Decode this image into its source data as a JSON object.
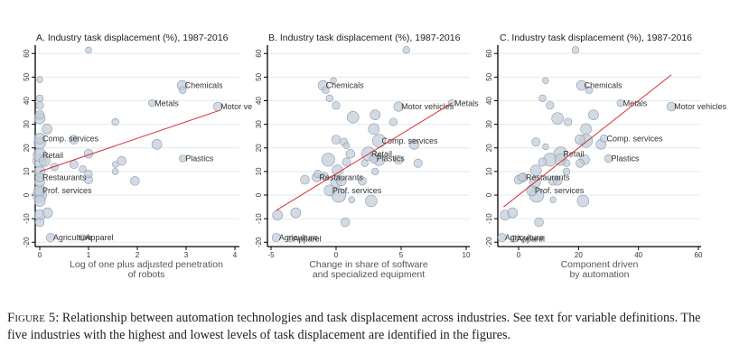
{
  "chart_data": [
    {
      "type": "scatter",
      "title": "A. Industry task displacement (%), 1987-2016",
      "xlabel": [
        "Log of one plus adjusted penetration",
        "of robots"
      ],
      "ylabel": "",
      "xlim": [
        -0.1,
        4.1
      ],
      "ylim": [
        -22,
        64
      ],
      "xticks": [
        0,
        1,
        2,
        3,
        4
      ],
      "yticks": [
        -20,
        -10,
        0,
        10,
        20,
        30,
        40,
        50,
        60
      ],
      "grid": true,
      "fit_line": {
        "x": [
          0,
          3.7
        ],
        "y": [
          10,
          36
        ]
      },
      "points": [
        {
          "x": 0.0,
          "y": 49,
          "s": 1
        },
        {
          "x": 0.0,
          "y": 41,
          "s": 1.5
        },
        {
          "x": 0.0,
          "y": 38,
          "s": 2
        },
        {
          "x": 0.0,
          "y": 34,
          "s": 3
        },
        {
          "x": 0.0,
          "y": 32.5,
          "s": 5
        },
        {
          "x": 0.15,
          "y": 28,
          "s": 4
        },
        {
          "x": 0.0,
          "y": 24,
          "s": 5,
          "label": "Comp. services"
        },
        {
          "x": 0.0,
          "y": 22,
          "s": 6
        },
        {
          "x": 0.0,
          "y": 17,
          "s": 8,
          "label": "Retail"
        },
        {
          "x": 0.0,
          "y": 14.5,
          "s": 9
        },
        {
          "x": 0.1,
          "y": 14.5,
          "s": 5
        },
        {
          "x": 0.0,
          "y": 10,
          "s": 5
        },
        {
          "x": 0.0,
          "y": 7.5,
          "s": 3,
          "label": "Restaurants"
        },
        {
          "x": 0.0,
          "y": 5.5,
          "s": 4
        },
        {
          "x": 0.0,
          "y": 2,
          "s": 6,
          "label": "Prof. services"
        },
        {
          "x": 0.0,
          "y": 0,
          "s": 9
        },
        {
          "x": 0.0,
          "y": -2.5,
          "s": 5
        },
        {
          "x": 0.0,
          "y": -8.5,
          "s": 5
        },
        {
          "x": 0.0,
          "y": -11.5,
          "s": 3
        },
        {
          "x": 0.16,
          "y": -7.5,
          "s": 4
        },
        {
          "x": 0.22,
          "y": -18,
          "s": 2.5,
          "label": "Agriculture"
        },
        {
          "x": 0.88,
          "y": -18,
          "s": 1,
          "label": "Apparel"
        },
        {
          "x": 0.3,
          "y": 12,
          "s": 2
        },
        {
          "x": 0.7,
          "y": 23.5,
          "s": 3
        },
        {
          "x": 0.7,
          "y": 13,
          "s": 2.5
        },
        {
          "x": 0.88,
          "y": 11,
          "s": 1.5
        },
        {
          "x": 1.0,
          "y": 17.5,
          "s": 3
        },
        {
          "x": 1.0,
          "y": 9,
          "s": 2
        },
        {
          "x": 1.0,
          "y": 6.5,
          "s": 2.5
        },
        {
          "x": 1.0,
          "y": 61.5,
          "s": 1
        },
        {
          "x": 1.55,
          "y": 31,
          "s": 1.5
        },
        {
          "x": 1.55,
          "y": 13,
          "s": 1
        },
        {
          "x": 1.55,
          "y": 10,
          "s": 1
        },
        {
          "x": 1.68,
          "y": 14.5,
          "s": 3
        },
        {
          "x": 1.95,
          "y": 6,
          "s": 3
        },
        {
          "x": 2.4,
          "y": 21.5,
          "s": 4
        },
        {
          "x": 2.3,
          "y": 39,
          "s": 1.5,
          "label": "Metals"
        },
        {
          "x": 2.92,
          "y": 46.5,
          "s": 4,
          "label": "Chemicals"
        },
        {
          "x": 2.93,
          "y": 44.5,
          "s": 1.5
        },
        {
          "x": 2.93,
          "y": 15.5,
          "s": 1.5,
          "label": "Plastics"
        },
        {
          "x": 3.65,
          "y": 37.5,
          "s": 3,
          "label": "Motor ve"
        }
      ]
    },
    {
      "type": "scatter",
      "title": "B. Industry task displacement (%), 1987-2016",
      "xlabel": [
        "Change in share of software",
        "and specialized equipment"
      ],
      "ylabel": "",
      "xlim": [
        -5.3,
        10.3
      ],
      "ylim": [
        -22,
        64
      ],
      "xticks": [
        -5,
        0,
        5,
        10
      ],
      "yticks": [
        -20,
        -10,
        0,
        10,
        20,
        30,
        40,
        50,
        60
      ],
      "grid": true,
      "fit_line": {
        "x": [
          -4.6,
          8.9
        ],
        "y": [
          -6.5,
          39
        ]
      },
      "points": [
        {
          "x": -4.6,
          "y": -18,
          "s": 2.5,
          "label": "Agriculture"
        },
        {
          "x": -3.5,
          "y": -18.5,
          "s": 1,
          "label": "Apparel"
        },
        {
          "x": -4.5,
          "y": -8.5,
          "s": 4
        },
        {
          "x": -3.1,
          "y": -7.5,
          "s": 4
        },
        {
          "x": -2.4,
          "y": 6.5,
          "s": 3
        },
        {
          "x": -1.5,
          "y": 7.5,
          "s": 3,
          "label": "Restaurants"
        },
        {
          "x": -1.4,
          "y": 9,
          "s": 2
        },
        {
          "x": -0.9,
          "y": 8,
          "s": 2
        },
        {
          "x": -0.6,
          "y": 15,
          "s": 8
        },
        {
          "x": -0.5,
          "y": 2,
          "s": 5,
          "label": "Prof. services"
        },
        {
          "x": 0.2,
          "y": 0,
          "s": 10
        },
        {
          "x": 0.0,
          "y": 5.5,
          "s": 5
        },
        {
          "x": 0.4,
          "y": 6,
          "s": 4
        },
        {
          "x": 0.1,
          "y": 10.5,
          "s": 5
        },
        {
          "x": 0.7,
          "y": -11.5,
          "s": 3
        },
        {
          "x": 0.0,
          "y": 23.5,
          "s": 3
        },
        {
          "x": 0.6,
          "y": 22.5,
          "s": 2
        },
        {
          "x": 0.8,
          "y": 14,
          "s": 2.5
        },
        {
          "x": 0.8,
          "y": 21,
          "s": 1
        },
        {
          "x": 1.1,
          "y": 17.5,
          "s": 3
        },
        {
          "x": 1.2,
          "y": -2,
          "s": 1
        },
        {
          "x": 1.3,
          "y": 33,
          "s": 6
        },
        {
          "x": 2.0,
          "y": 6,
          "s": 2.5
        },
        {
          "x": 2.2,
          "y": 13.5,
          "s": 1.5
        },
        {
          "x": 2.5,
          "y": 17.5,
          "s": 9,
          "label": "Retail"
        },
        {
          "x": 2.7,
          "y": -2.5,
          "s": 6
        },
        {
          "x": 2.9,
          "y": 15.5,
          "s": 3,
          "label": "Plastics"
        },
        {
          "x": 3.0,
          "y": 10,
          "s": 1.5
        },
        {
          "x": 3.0,
          "y": 34,
          "s": 4
        },
        {
          "x": 2.9,
          "y": 28,
          "s": 5
        },
        {
          "x": 3.3,
          "y": 23,
          "s": 8,
          "label": "Comp. services"
        },
        {
          "x": 3.3,
          "y": 15,
          "s": 6
        },
        {
          "x": 4.4,
          "y": 31,
          "s": 2
        },
        {
          "x": 4.8,
          "y": 15,
          "s": 3
        },
        {
          "x": 4.8,
          "y": 37.5,
          "s": 3.5,
          "label": "Motor vehicles"
        },
        {
          "x": 5.4,
          "y": 61.5,
          "s": 1.5
        },
        {
          "x": 6.0,
          "y": 21.5,
          "s": 4
        },
        {
          "x": 6.3,
          "y": 13.5,
          "s": 2.5
        },
        {
          "x": -0.2,
          "y": 48.5,
          "s": 1
        },
        {
          "x": -0.5,
          "y": 41,
          "s": 1.5
        },
        {
          "x": 0.0,
          "y": 38,
          "s": 2
        },
        {
          "x": -1.0,
          "y": 46.5,
          "s": 4,
          "label": "Chemicals"
        },
        {
          "x": -0.8,
          "y": 44.5,
          "s": 1.5
        },
        {
          "x": 8.9,
          "y": 39,
          "s": 1.5,
          "label": "Metals"
        }
      ]
    },
    {
      "type": "scatter",
      "title": "C. Industry task displacement (%), 1987-2016",
      "xlabel": [
        "Component driven",
        "by automation"
      ],
      "ylabel": "",
      "xlim": [
        -7,
        61
      ],
      "ylim": [
        -22,
        64
      ],
      "xticks": [
        0,
        20,
        40,
        60
      ],
      "yticks": [
        -20,
        -10,
        0,
        10,
        20,
        30,
        40,
        50,
        60
      ],
      "grid": true,
      "fit_line": {
        "x": [
          -5,
          51
        ],
        "y": [
          -5,
          51
        ]
      },
      "points": [
        {
          "x": -5.5,
          "y": -18,
          "s": 2.5,
          "label": "Agriculture"
        },
        {
          "x": -1.5,
          "y": -18.5,
          "s": 1.5,
          "label": "Apparel"
        },
        {
          "x": -4.5,
          "y": -8.5,
          "s": 4
        },
        {
          "x": -2,
          "y": -7.5,
          "s": 4
        },
        {
          "x": 0,
          "y": 6.5,
          "s": 3
        },
        {
          "x": 1.5,
          "y": 7.5,
          "s": 3,
          "label": "Restaurants"
        },
        {
          "x": 1,
          "y": 7.5,
          "s": 2
        },
        {
          "x": 4.5,
          "y": 2,
          "s": 5,
          "label": "Prof. services"
        },
        {
          "x": 6,
          "y": 0,
          "s": 10
        },
        {
          "x": 5.5,
          "y": 5.5,
          "s": 5
        },
        {
          "x": 5.8,
          "y": 10.5,
          "s": 5
        },
        {
          "x": 6.8,
          "y": -11.5,
          "s": 3
        },
        {
          "x": 5.8,
          "y": 22.5,
          "s": 2.5
        },
        {
          "x": 8,
          "y": 14,
          "s": 2.5
        },
        {
          "x": 9,
          "y": 20.5,
          "s": 1
        },
        {
          "x": 10.5,
          "y": 15,
          "s": 8
        },
        {
          "x": 11.5,
          "y": -2,
          "s": 1
        },
        {
          "x": 11.5,
          "y": 6,
          "s": 3
        },
        {
          "x": 13,
          "y": 6,
          "s": 3
        },
        {
          "x": 13,
          "y": 32.5,
          "s": 6
        },
        {
          "x": 14,
          "y": 17.5,
          "s": 9,
          "label": "Retail"
        },
        {
          "x": 14,
          "y": 15,
          "s": 6
        },
        {
          "x": 16,
          "y": 13.5,
          "s": 1.5
        },
        {
          "x": 16,
          "y": 10,
          "s": 1.5
        },
        {
          "x": 16.5,
          "y": 31,
          "s": 2
        },
        {
          "x": 20.5,
          "y": 13.5,
          "s": 2.5
        },
        {
          "x": 20.5,
          "y": 23.5,
          "s": 4
        },
        {
          "x": 21.5,
          "y": -2.5,
          "s": 6
        },
        {
          "x": 22,
          "y": 15,
          "s": 4
        },
        {
          "x": 22.5,
          "y": 28,
          "s": 5
        },
        {
          "x": 22.5,
          "y": 23,
          "s": 8
        },
        {
          "x": 25,
          "y": 34,
          "s": 4
        },
        {
          "x": 27.5,
          "y": 21.5,
          "s": 4
        },
        {
          "x": 28.5,
          "y": 24,
          "s": 2,
          "label": "Comp. services"
        },
        {
          "x": 30,
          "y": 15.5,
          "s": 2,
          "label": "Plastics"
        },
        {
          "x": 19,
          "y": 61.5,
          "s": 1.5
        },
        {
          "x": 9,
          "y": 48.5,
          "s": 1
        },
        {
          "x": 8,
          "y": 41,
          "s": 1.5
        },
        {
          "x": 10.5,
          "y": 38,
          "s": 2
        },
        {
          "x": 21,
          "y": 46.5,
          "s": 4,
          "label": "Chemicals"
        },
        {
          "x": 23.5,
          "y": 44.5,
          "s": 1.5
        },
        {
          "x": 34,
          "y": 39,
          "s": 1.5,
          "label": "Metals"
        },
        {
          "x": 51,
          "y": 37.5,
          "s": 3,
          "label": "Motor vehicles"
        }
      ]
    }
  ],
  "caption": {
    "figure_label": "Figure 5:",
    "text": "Relationship between automation technologies and task displacement across industries. See text for variable definitions. The five industries with the highest and lowest levels of task displacement are identified in the figures."
  },
  "colors": {
    "marker_fill": "#c3cdd9",
    "marker_stroke": "#8e9cad",
    "fit_line": "#d6303a",
    "grid": "#e3e8ee",
    "axis": "#000000"
  }
}
